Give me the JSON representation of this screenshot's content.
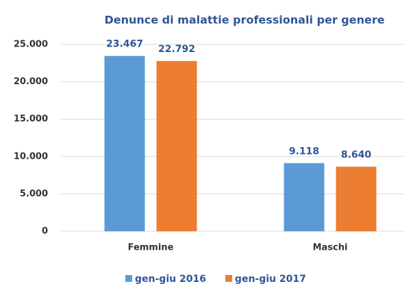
{
  "chart_data": {
    "type": "bar",
    "title": "Denunce di malattie professionali per genere",
    "categories": [
      "Femmine",
      "Maschi"
    ],
    "series": [
      {
        "name": "gen-giu 2016",
        "color": "#5b9bd5",
        "values": [
          23467,
          9118
        ],
        "value_labels": [
          "23.467",
          "9.118"
        ]
      },
      {
        "name": "gen-giu 2017",
        "color": "#ed7d31",
        "values": [
          22792,
          8640
        ],
        "value_labels": [
          "22.792",
          "8.640"
        ]
      }
    ],
    "ylim": [
      0,
      25000
    ],
    "yticks": [
      0,
      {
        "value": 5000,
        "label": "5.000"
      },
      {
        "value": 10000,
        "label": "10.000"
      },
      {
        "value": 15000,
        "label": "15.000"
      },
      {
        "value": 20000,
        "label": "20.000"
      },
      {
        "value": 25000,
        "label": "25.000"
      }
    ],
    "grid": true,
    "legend": "bottom"
  }
}
